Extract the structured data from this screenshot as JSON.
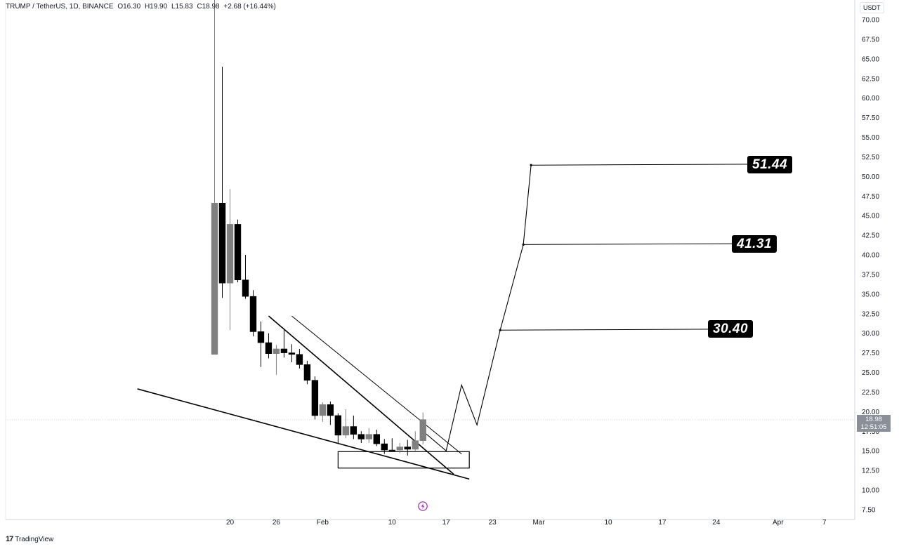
{
  "legend": {
    "symbol": "TRUMP / TetherUS, 1D, BINANCE",
    "open": "O16.30",
    "high": "H19.90",
    "low": "L15.83",
    "close": "C18.98",
    "change": "+2.68 (+16.44%)"
  },
  "currency": "USDT",
  "last_price": {
    "price": "18.98",
    "countdown": "12:51:05"
  },
  "targets": [
    "51.44",
    "41.31",
    "30.40"
  ],
  "brand": {
    "logo": "17",
    "name": "TradingView"
  },
  "icons": [
    "flash-icon",
    "tradingview-logo-icon"
  ],
  "colors": {
    "bear": "#000000",
    "bull": "#808080",
    "background": "#ffffff",
    "grid_line": "#d6d9e0"
  },
  "chart_data": {
    "type": "candlestick",
    "y_axis": {
      "side": "right",
      "ylim": [
        6.5,
        71.5
      ],
      "ticks": [
        70,
        67.5,
        65,
        62.5,
        60,
        57.5,
        55,
        52.5,
        50,
        47.5,
        45,
        42.5,
        40,
        37.5,
        35,
        32.5,
        30,
        27.5,
        25,
        22.5,
        20,
        17.5,
        15,
        12.5,
        10,
        7.5
      ],
      "tick_labels": [
        "70.00",
        "67.50",
        "65.00",
        "62.50",
        "60.00",
        "57.50",
        "55.00",
        "52.50",
        "50.00",
        "47.50",
        "45.00",
        "42.50",
        "40.00",
        "37.50",
        "35.00",
        "32.50",
        "30.00",
        "27.50",
        "25.00",
        "22.50",
        "20.00",
        "17.50",
        "15.00",
        "12.50",
        "10.00",
        "7.50"
      ]
    },
    "x_axis": {
      "start_date": "2025-01-18",
      "end_date": "2025-04-10",
      "ticks": [
        {
          "date": "2025-01-20",
          "label": "20"
        },
        {
          "date": "2025-01-26",
          "label": "26"
        },
        {
          "date": "2025-02-01",
          "label": "Feb"
        },
        {
          "date": "2025-02-10",
          "label": "10"
        },
        {
          "date": "2025-02-17",
          "label": "17"
        },
        {
          "date": "2025-02-23",
          "label": "23"
        },
        {
          "date": "2025-03-01",
          "label": "Mar"
        },
        {
          "date": "2025-03-10",
          "label": "10"
        },
        {
          "date": "2025-03-17",
          "label": "17"
        },
        {
          "date": "2025-03-24",
          "label": "24"
        },
        {
          "date": "2025-04-01",
          "label": "Apr"
        },
        {
          "date": "2025-04-07",
          "label": "7"
        }
      ]
    },
    "candles": [
      {
        "date": "2025-01-18",
        "o": 27.3,
        "h": 73.4,
        "l": 27.3,
        "c": 46.6
      },
      {
        "date": "2025-01-19",
        "o": 46.6,
        "h": 64.0,
        "l": 34.5,
        "c": 36.4
      },
      {
        "date": "2025-01-20",
        "o": 36.4,
        "h": 48.4,
        "l": 30.4,
        "c": 43.9
      },
      {
        "date": "2025-01-21",
        "o": 43.9,
        "h": 44.5,
        "l": 36.5,
        "c": 36.8
      },
      {
        "date": "2025-01-22",
        "o": 36.8,
        "h": 40.0,
        "l": 34.4,
        "c": 34.7
      },
      {
        "date": "2025-01-23",
        "o": 34.7,
        "h": 35.5,
        "l": 29.6,
        "c": 30.2
      },
      {
        "date": "2025-01-24",
        "o": 30.2,
        "h": 31.5,
        "l": 25.7,
        "c": 28.8
      },
      {
        "date": "2025-01-25",
        "o": 28.8,
        "h": 30.0,
        "l": 26.8,
        "c": 27.4
      },
      {
        "date": "2025-01-26",
        "o": 27.4,
        "h": 28.5,
        "l": 24.7,
        "c": 28.0
      },
      {
        "date": "2025-01-27",
        "o": 28.0,
        "h": 30.4,
        "l": 26.9,
        "c": 27.5
      },
      {
        "date": "2025-01-28",
        "o": 27.5,
        "h": 28.6,
        "l": 26.3,
        "c": 27.3
      },
      {
        "date": "2025-01-29",
        "o": 27.3,
        "h": 28.0,
        "l": 25.5,
        "c": 26.0
      },
      {
        "date": "2025-01-30",
        "o": 26.0,
        "h": 26.5,
        "l": 23.5,
        "c": 24.0
      },
      {
        "date": "2025-01-31",
        "o": 24.0,
        "h": 24.5,
        "l": 19.0,
        "c": 19.5
      },
      {
        "date": "2025-02-01",
        "o": 19.5,
        "h": 21.2,
        "l": 18.7,
        "c": 20.9
      },
      {
        "date": "2025-02-02",
        "o": 20.9,
        "h": 21.3,
        "l": 18.3,
        "c": 19.5
      },
      {
        "date": "2025-02-03",
        "o": 19.5,
        "h": 19.8,
        "l": 16.0,
        "c": 17.0
      },
      {
        "date": "2025-02-04",
        "o": 17.0,
        "h": 20.3,
        "l": 16.6,
        "c": 18.1
      },
      {
        "date": "2025-02-05",
        "o": 18.1,
        "h": 19.5,
        "l": 16.5,
        "c": 17.1
      },
      {
        "date": "2025-02-06",
        "o": 17.1,
        "h": 17.5,
        "l": 16.0,
        "c": 16.5
      },
      {
        "date": "2025-02-07",
        "o": 16.5,
        "h": 17.9,
        "l": 16.0,
        "c": 17.1
      },
      {
        "date": "2025-02-08",
        "o": 17.1,
        "h": 17.7,
        "l": 15.6,
        "c": 15.9
      },
      {
        "date": "2025-02-09",
        "o": 15.9,
        "h": 16.5,
        "l": 14.6,
        "c": 15.1
      },
      {
        "date": "2025-02-10",
        "o": 15.1,
        "h": 16.6,
        "l": 15.0,
        "c": 15.0
      },
      {
        "date": "2025-02-11",
        "o": 15.1,
        "h": 16.0,
        "l": 14.7,
        "c": 15.5
      },
      {
        "date": "2025-02-12",
        "o": 15.5,
        "h": 16.4,
        "l": 14.4,
        "c": 15.2
      },
      {
        "date": "2025-02-13",
        "o": 15.2,
        "h": 17.5,
        "l": 15.0,
        "c": 16.3
      },
      {
        "date": "2025-02-14",
        "o": 16.3,
        "h": 19.9,
        "l": 15.83,
        "c": 18.98
      }
    ],
    "drawings": {
      "outer_channel_line": [
        {
          "date": "2025-01-28",
          "y": 32.2
        },
        {
          "date": "2025-02-19",
          "y": 14.6
        }
      ],
      "wedge_upper_line": [
        {
          "date": "2025-01-25",
          "y": 32.2
        },
        {
          "date": "2025-02-18",
          "y": 12.0
        }
      ],
      "wedge_lower_line": [
        {
          "date": "2025-01-08",
          "y": 22.9
        },
        {
          "date": "2025-02-20",
          "y": 11.4
        }
      ],
      "support_zone": {
        "from": "2025-02-03",
        "to": "2025-02-20",
        "y_top": 14.9,
        "y_bottom": 12.8
      },
      "projected_path": [
        {
          "date": "2025-02-14",
          "y": 17.5
        },
        {
          "date": "2025-02-17",
          "y": 15.0
        },
        {
          "date": "2025-02-19",
          "y": 23.4
        },
        {
          "date": "2025-02-21",
          "y": 18.3
        },
        {
          "date": "2025-02-24",
          "y": 30.4
        },
        {
          "date": "2025-02-27",
          "y": 41.31
        },
        {
          "date": "2025-02-28",
          "y": 51.44
        }
      ],
      "target_lines": [
        {
          "from": "2025-02-24",
          "to": "2025-03-28",
          "y": 30.4
        },
        {
          "from": "2025-02-27",
          "to": "2025-03-31",
          "y": 41.31
        },
        {
          "from": "2025-02-28",
          "to": "2025-04-01",
          "y": 51.44
        }
      ]
    }
  }
}
